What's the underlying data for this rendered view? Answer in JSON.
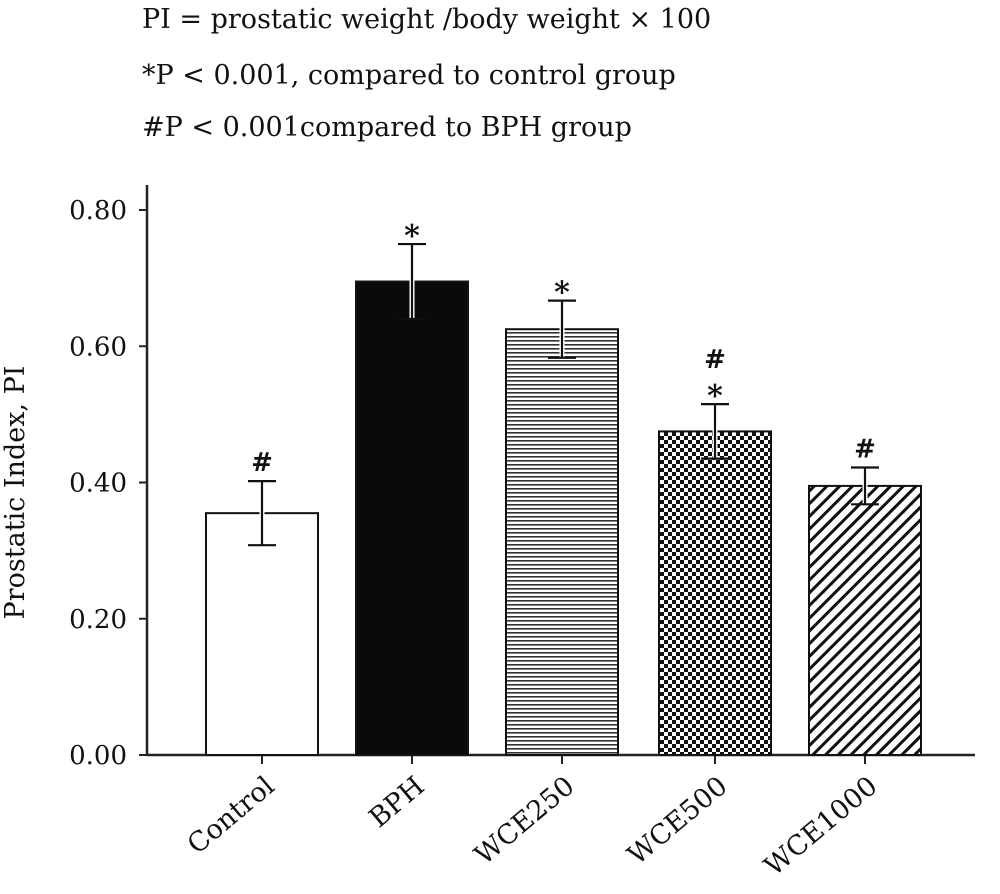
{
  "notes": [
    "PI = prostatic weight /body weight × 100",
    "*P < 0.001, compared to control group",
    "#P < 0.001compared to BPH group"
  ],
  "chart_data": {
    "type": "bar",
    "title": "",
    "xlabel": "",
    "ylabel": "Prostatic Index, PI",
    "ylim": [
      0,
      0.8
    ],
    "yticks": [
      "0.00",
      "0.20",
      "0.40",
      "0.60",
      "0.80"
    ],
    "categories": [
      "Control",
      "BPH",
      "WCE250",
      "WCE500",
      "WCE1000"
    ],
    "values": [
      0.355,
      0.695,
      0.625,
      0.475,
      0.395
    ],
    "errors": [
      0.047,
      0.055,
      0.042,
      0.04,
      0.027
    ],
    "annotations": [
      "#",
      "*",
      "*",
      "#\n*",
      "#"
    ],
    "fills": [
      "white",
      "black",
      "horizontal-lines",
      "checker",
      "diagonal-lines"
    ],
    "grid": false,
    "legend": "none"
  }
}
